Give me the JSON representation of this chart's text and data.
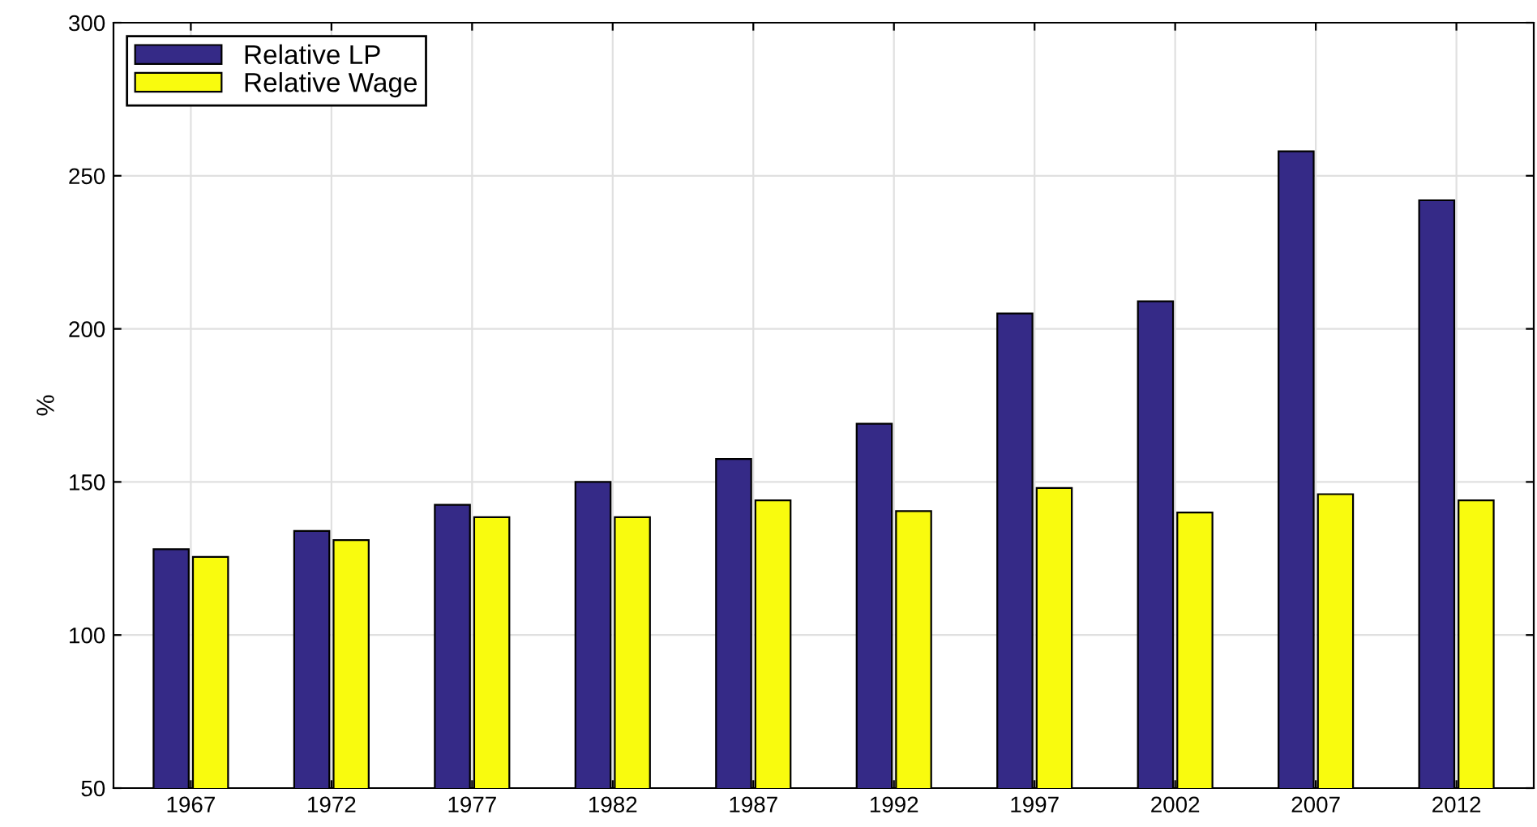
{
  "chart_data": {
    "type": "bar",
    "ylabel": "%",
    "categories": [
      "1967",
      "1972",
      "1977",
      "1982",
      "1987",
      "1992",
      "1997",
      "2002",
      "2007",
      "2012"
    ],
    "series": [
      {
        "name": "Relative LP",
        "color": "#352a87",
        "values": [
          128,
          134,
          142.5,
          150,
          157.5,
          169,
          205,
          209,
          258,
          242
        ]
      },
      {
        "name": "Relative Wage",
        "color": "#f9fb0e",
        "values": [
          125.5,
          131,
          138.5,
          138.5,
          144,
          140.5,
          148,
          140,
          146,
          144
        ]
      }
    ],
    "ylim": [
      50,
      300
    ],
    "yticks": [
      50,
      100,
      150,
      200,
      250,
      300
    ],
    "grid": true,
    "legend": "top left"
  }
}
